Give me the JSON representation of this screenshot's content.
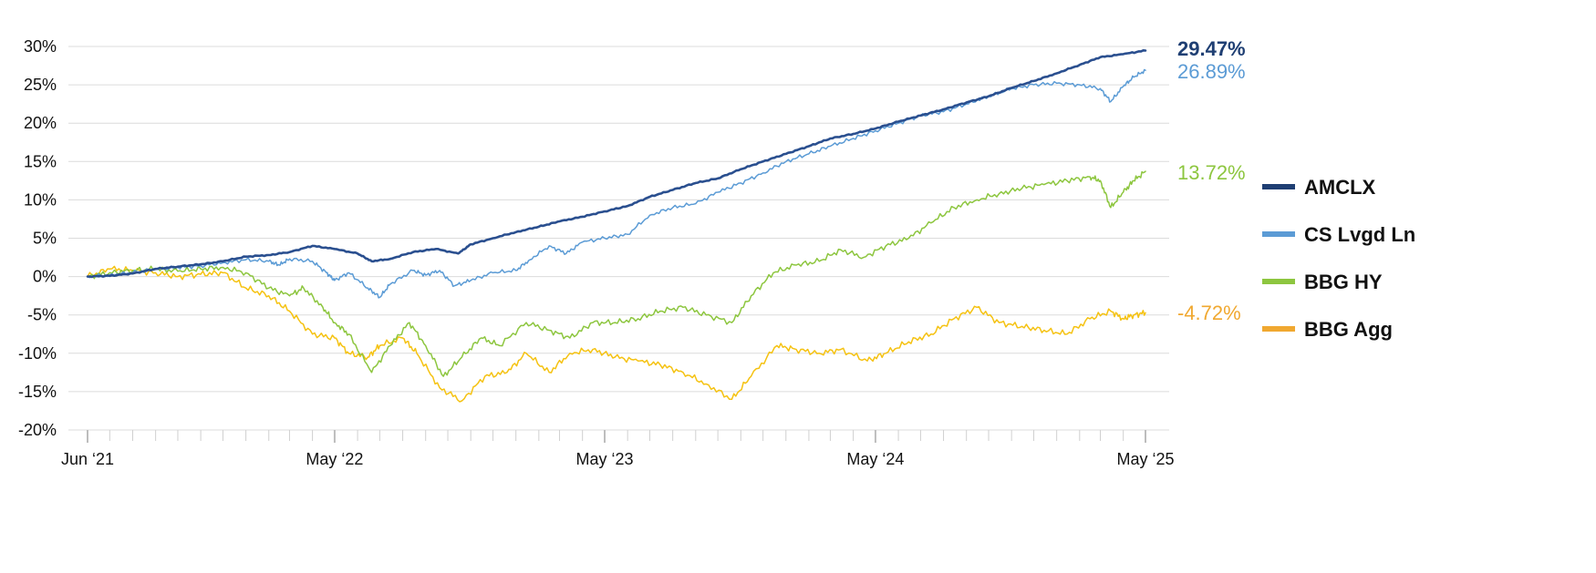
{
  "chart_data": {
    "type": "line",
    "title": "",
    "xlabel": "",
    "ylabel": "",
    "x_tick_labels": [
      "Jun ‘21",
      "May ‘22",
      "May ‘23",
      "May ‘24",
      "May ‘25"
    ],
    "x_tick_dates": [
      "2021-06-01",
      "2022-05-01",
      "2023-05-01",
      "2024-05-01",
      "2025-05-01"
    ],
    "y_ticks": [
      30,
      25,
      20,
      15,
      10,
      5,
      0,
      -5,
      -10,
      -15,
      -20
    ],
    "y_tick_labels": [
      "30%",
      "25%",
      "20%",
      "15%",
      "10%",
      "5%",
      "0%",
      "-5%",
      "-10%",
      "-15%",
      "-20%"
    ],
    "ylim": [
      -20,
      30
    ],
    "grid": "horizontal",
    "legend_position": "right",
    "series": [
      {
        "name": "AMCLX",
        "color": "#2a4f8f",
        "legend_color": "#1f3f73",
        "end_label": "29.47%",
        "end_color": "#1f3f73",
        "end_bold": true,
        "points": [
          [
            "2021-06-01",
            0.0
          ],
          [
            "2021-07-01",
            0.1
          ],
          [
            "2021-08-01",
            0.4
          ],
          [
            "2021-09-01",
            1.0
          ],
          [
            "2021-10-01",
            1.3
          ],
          [
            "2021-11-01",
            1.6
          ],
          [
            "2021-12-01",
            2.0
          ],
          [
            "2022-01-01",
            2.6
          ],
          [
            "2022-02-01",
            2.8
          ],
          [
            "2022-03-01",
            3.2
          ],
          [
            "2022-04-01",
            4.0
          ],
          [
            "2022-05-01",
            3.6
          ],
          [
            "2022-06-01",
            3.0
          ],
          [
            "2022-06-20",
            2.0
          ],
          [
            "2022-07-15",
            2.3
          ],
          [
            "2022-08-15",
            3.2
          ],
          [
            "2022-09-15",
            3.6
          ],
          [
            "2022-10-15",
            3.0
          ],
          [
            "2022-11-01",
            4.2
          ],
          [
            "2022-12-01",
            5.0
          ],
          [
            "2023-01-01",
            5.8
          ],
          [
            "2023-02-01",
            6.5
          ],
          [
            "2023-03-01",
            7.2
          ],
          [
            "2023-04-01",
            7.8
          ],
          [
            "2023-05-01",
            8.5
          ],
          [
            "2023-06-01",
            9.2
          ],
          [
            "2023-07-01",
            10.4
          ],
          [
            "2023-08-01",
            11.3
          ],
          [
            "2023-09-01",
            12.2
          ],
          [
            "2023-10-01",
            12.8
          ],
          [
            "2023-11-01",
            14.0
          ],
          [
            "2023-12-01",
            15.0
          ],
          [
            "2024-01-01",
            16.0
          ],
          [
            "2024-02-01",
            17.0
          ],
          [
            "2024-03-01",
            18.0
          ],
          [
            "2024-04-01",
            18.6
          ],
          [
            "2024-05-01",
            19.3
          ],
          [
            "2024-06-01",
            20.2
          ],
          [
            "2024-07-01",
            21.0
          ],
          [
            "2024-08-01",
            21.8
          ],
          [
            "2024-09-01",
            22.7
          ],
          [
            "2024-10-01",
            23.5
          ],
          [
            "2024-11-01",
            24.6
          ],
          [
            "2024-12-01",
            25.5
          ],
          [
            "2025-01-01",
            26.5
          ],
          [
            "2025-02-01",
            27.6
          ],
          [
            "2025-03-01",
            28.6
          ],
          [
            "2025-04-01",
            29.0
          ],
          [
            "2025-05-01",
            29.47
          ]
        ]
      },
      {
        "name": "CS Lvgd Ln",
        "color": "#5b9bd5",
        "legend_color": "#5b9bd5",
        "end_label": "26.89%",
        "end_color": "#5b9bd5",
        "end_bold": false,
        "points": [
          [
            "2021-06-01",
            0.0
          ],
          [
            "2021-07-01",
            0.2
          ],
          [
            "2021-08-01",
            0.5
          ],
          [
            "2021-09-01",
            1.0
          ],
          [
            "2021-10-01",
            1.2
          ],
          [
            "2021-11-01",
            1.4
          ],
          [
            "2021-12-01",
            1.8
          ],
          [
            "2022-01-01",
            2.2
          ],
          [
            "2022-02-01",
            2.0
          ],
          [
            "2022-02-15",
            1.5
          ],
          [
            "2022-03-01",
            2.3
          ],
          [
            "2022-04-01",
            2.0
          ],
          [
            "2022-04-20",
            0.5
          ],
          [
            "2022-05-01",
            -0.5
          ],
          [
            "2022-05-20",
            0.5
          ],
          [
            "2022-06-15",
            -1.5
          ],
          [
            "2022-07-01",
            -2.7
          ],
          [
            "2022-07-15",
            -1.0
          ],
          [
            "2022-08-15",
            0.8
          ],
          [
            "2022-09-01",
            0.2
          ],
          [
            "2022-09-20",
            0.8
          ],
          [
            "2022-10-10",
            -1.2
          ],
          [
            "2022-11-01",
            -0.5
          ],
          [
            "2022-12-01",
            0.5
          ],
          [
            "2023-01-01",
            0.8
          ],
          [
            "2023-01-20",
            2.2
          ],
          [
            "2023-02-15",
            4.0
          ],
          [
            "2023-03-10",
            3.0
          ],
          [
            "2023-04-01",
            4.5
          ],
          [
            "2023-05-01",
            5.0
          ],
          [
            "2023-06-01",
            5.5
          ],
          [
            "2023-07-01",
            8.0
          ],
          [
            "2023-08-01",
            9.0
          ],
          [
            "2023-09-01",
            9.5
          ],
          [
            "2023-10-01",
            11.0
          ],
          [
            "2023-11-01",
            12.2
          ],
          [
            "2023-12-01",
            13.5
          ],
          [
            "2024-01-01",
            15.0
          ],
          [
            "2024-02-01",
            16.0
          ],
          [
            "2024-03-01",
            17.0
          ],
          [
            "2024-04-01",
            18.0
          ],
          [
            "2024-05-01",
            19.0
          ],
          [
            "2024-06-01",
            20.0
          ],
          [
            "2024-07-01",
            21.0
          ],
          [
            "2024-08-01",
            21.5
          ],
          [
            "2024-09-01",
            22.5
          ],
          [
            "2024-10-01",
            23.5
          ],
          [
            "2024-11-01",
            24.5
          ],
          [
            "2024-12-01",
            25.0
          ],
          [
            "2025-01-01",
            25.2
          ],
          [
            "2025-02-01",
            25.0
          ],
          [
            "2025-03-01",
            24.5
          ],
          [
            "2025-03-15",
            22.8
          ],
          [
            "2025-04-01",
            24.8
          ],
          [
            "2025-04-15",
            26.0
          ],
          [
            "2025-05-01",
            26.89
          ]
        ]
      },
      {
        "name": "BBG HY",
        "color": "#8dc63f",
        "legend_color": "#8dc63f",
        "end_label": "13.72%",
        "end_color": "#8dc63f",
        "end_bold": false,
        "points": [
          [
            "2021-06-01",
            0.0
          ],
          [
            "2021-07-01",
            0.5
          ],
          [
            "2021-08-01",
            0.8
          ],
          [
            "2021-09-01",
            1.0
          ],
          [
            "2021-10-01",
            0.7
          ],
          [
            "2021-11-01",
            1.0
          ],
          [
            "2021-12-01",
            1.2
          ],
          [
            "2022-01-01",
            0.5
          ],
          [
            "2022-02-01",
            -1.5
          ],
          [
            "2022-03-01",
            -2.5
          ],
          [
            "2022-03-20",
            -1.5
          ],
          [
            "2022-04-15",
            -4.0
          ],
          [
            "2022-05-01",
            -6.0
          ],
          [
            "2022-05-20",
            -7.5
          ],
          [
            "2022-06-20",
            -12.5
          ],
          [
            "2022-07-15",
            -9.0
          ],
          [
            "2022-08-10",
            -6.0
          ],
          [
            "2022-09-01",
            -9.0
          ],
          [
            "2022-09-25",
            -13.0
          ],
          [
            "2022-10-20",
            -10.5
          ],
          [
            "2022-11-15",
            -8.0
          ],
          [
            "2022-12-10",
            -9.0
          ],
          [
            "2023-01-15",
            -6.0
          ],
          [
            "2023-02-15",
            -7.0
          ],
          [
            "2023-03-15",
            -8.0
          ],
          [
            "2023-04-15",
            -6.0
          ],
          [
            "2023-05-15",
            -6.0
          ],
          [
            "2023-06-15",
            -5.5
          ],
          [
            "2023-07-15",
            -4.5
          ],
          [
            "2023-08-15",
            -4.0
          ],
          [
            "2023-09-15",
            -5.0
          ],
          [
            "2023-10-20",
            -6.0
          ],
          [
            "2023-11-15",
            -2.5
          ],
          [
            "2023-12-15",
            0.5
          ],
          [
            "2024-01-15",
            1.5
          ],
          [
            "2024-02-15",
            2.0
          ],
          [
            "2024-03-15",
            3.5
          ],
          [
            "2024-04-15",
            2.5
          ],
          [
            "2024-05-15",
            4.0
          ],
          [
            "2024-06-15",
            5.0
          ],
          [
            "2024-07-15",
            7.0
          ],
          [
            "2024-08-15",
            9.0
          ],
          [
            "2024-09-15",
            10.0
          ],
          [
            "2024-10-15",
            10.8
          ],
          [
            "2024-11-15",
            11.5
          ],
          [
            "2024-12-15",
            12.0
          ],
          [
            "2025-01-15",
            12.5
          ],
          [
            "2025-02-15",
            13.0
          ],
          [
            "2025-03-01",
            12.5
          ],
          [
            "2025-03-15",
            9.0
          ],
          [
            "2025-04-01",
            11.0
          ],
          [
            "2025-04-15",
            12.5
          ],
          [
            "2025-05-01",
            13.72
          ]
        ]
      },
      {
        "name": "BBG Agg",
        "color": "#f5c211",
        "legend_color": "#f0a830",
        "end_label": "-4.72%",
        "end_color": "#f0a830",
        "end_bold": false,
        "points": [
          [
            "2021-06-01",
            0.0
          ],
          [
            "2021-07-01",
            1.0
          ],
          [
            "2021-08-01",
            0.8
          ],
          [
            "2021-09-01",
            0.5
          ],
          [
            "2021-10-01",
            0.0
          ],
          [
            "2021-11-01",
            0.3
          ],
          [
            "2021-12-01",
            0.5
          ],
          [
            "2022-01-01",
            -1.5
          ],
          [
            "2022-02-01",
            -2.5
          ],
          [
            "2022-03-01",
            -4.5
          ],
          [
            "2022-04-01",
            -7.5
          ],
          [
            "2022-05-01",
            -8.0
          ],
          [
            "2022-05-20",
            -10.0
          ],
          [
            "2022-06-15",
            -10.5
          ],
          [
            "2022-07-01",
            -9.0
          ],
          [
            "2022-08-01",
            -8.0
          ],
          [
            "2022-08-20",
            -10.0
          ],
          [
            "2022-09-20",
            -14.5
          ],
          [
            "2022-10-20",
            -16.2
          ],
          [
            "2022-11-20",
            -13.0
          ],
          [
            "2022-12-20",
            -12.5
          ],
          [
            "2023-01-15",
            -10.0
          ],
          [
            "2023-02-15",
            -12.5
          ],
          [
            "2023-03-15",
            -10.0
          ],
          [
            "2023-04-15",
            -9.5
          ],
          [
            "2023-05-15",
            -10.5
          ],
          [
            "2023-06-15",
            -11.0
          ],
          [
            "2023-07-15",
            -11.5
          ],
          [
            "2023-08-15",
            -12.5
          ],
          [
            "2023-09-15",
            -14.0
          ],
          [
            "2023-10-20",
            -16.0
          ],
          [
            "2023-11-15",
            -13.0
          ],
          [
            "2023-12-20",
            -9.0
          ],
          [
            "2024-01-15",
            -9.5
          ],
          [
            "2024-02-15",
            -10.0
          ],
          [
            "2024-03-15",
            -9.5
          ],
          [
            "2024-04-20",
            -11.0
          ],
          [
            "2024-05-15",
            -10.0
          ],
          [
            "2024-06-15",
            -8.5
          ],
          [
            "2024-07-15",
            -7.5
          ],
          [
            "2024-08-15",
            -5.5
          ],
          [
            "2024-09-15",
            -4.0
          ],
          [
            "2024-10-15",
            -6.0
          ],
          [
            "2024-11-15",
            -6.5
          ],
          [
            "2024-12-15",
            -7.0
          ],
          [
            "2025-01-15",
            -7.5
          ],
          [
            "2025-02-15",
            -5.5
          ],
          [
            "2025-03-15",
            -4.5
          ],
          [
            "2025-04-01",
            -5.5
          ],
          [
            "2025-04-15",
            -5.0
          ],
          [
            "2025-05-01",
            -4.72
          ]
        ]
      }
    ]
  }
}
